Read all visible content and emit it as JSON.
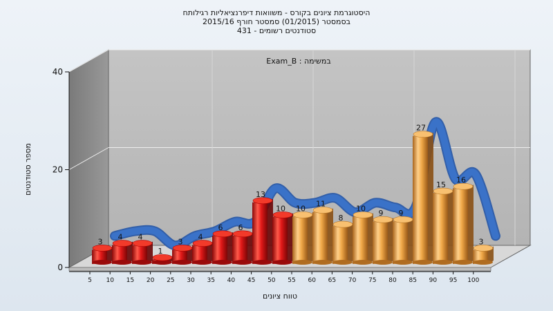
{
  "chart_data": {
    "type": "bar",
    "title_lines": [
      "היסטוגרמת ציונים בקורס - משוואות דיפרנציאליות רגילותח",
      "בסמסטר  (01/2015)  סמסטר חורף 2015/16",
      "סטודנטים רשומים - 431"
    ],
    "inner_label": "Exam_B : במשימה",
    "xlabel": "טווח ציונים",
    "ylabel": "מספר סטודנטים",
    "ylim": [
      0,
      40
    ],
    "yticks": [
      0,
      20,
      40
    ],
    "categories": [
      "5",
      "10",
      "15",
      "20",
      "25",
      "30",
      "35",
      "40",
      "45",
      "50",
      "55",
      "60",
      "65",
      "70",
      "75",
      "80",
      "85",
      "90",
      "95",
      "100"
    ],
    "values": [
      3,
      4,
      4,
      1,
      3,
      4,
      6,
      6,
      13,
      10,
      10,
      11,
      8,
      10,
      9,
      9,
      27,
      15,
      16,
      3
    ],
    "bar_groups": {
      "red_count": 10,
      "red_color": "#e01818",
      "orange_color": "#f0a848"
    },
    "trend_color": "#3a72c8",
    "grid": true
  }
}
